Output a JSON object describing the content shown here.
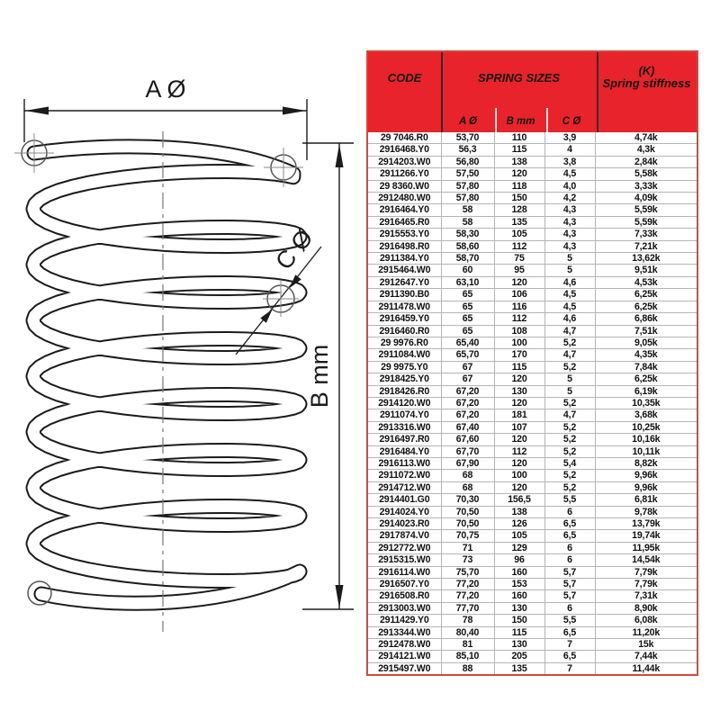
{
  "colors": {
    "header_red": "#e8232b",
    "table_border_red": "#d04a3c",
    "grid_gray": "#b5b5b5",
    "drawing_ink": "#1b1b1b"
  },
  "diagram": {
    "outer_diameter_label": "A Ø",
    "length_label": "B mm",
    "wire_diameter_label": "C Ø"
  },
  "table": {
    "header": {
      "code": "CODE",
      "sizes": "SPRING SIZES",
      "stiffness_line1": "(K)",
      "stiffness_line2": "Spring stiffness",
      "sub_a": "A Ø",
      "sub_b": "B mm",
      "sub_c": "C Ø"
    },
    "rows": [
      [
        "29 7046.R0",
        "53,70",
        "110",
        "3,9",
        "4,74k"
      ],
      [
        "2916468.Y0",
        "56,3",
        "115",
        "4",
        "4,3k"
      ],
      [
        "2914203.W0",
        "56,80",
        "138",
        "3,8",
        "2,84k"
      ],
      [
        "2911266.Y0",
        "57,50",
        "120",
        "4,5",
        "5,58k"
      ],
      [
        "29 8360.W0",
        "57,80",
        "118",
        "4,0",
        "3,33k"
      ],
      [
        "2912480.W0",
        "57,80",
        "150",
        "4,2",
        "4,09k"
      ],
      [
        "2916464.Y0",
        "58",
        "128",
        "4,3",
        "5,59k"
      ],
      [
        "2916465.R0",
        "58",
        "135",
        "4,3",
        "5,59k"
      ],
      [
        "2915553.Y0",
        "58,30",
        "105",
        "4,3",
        "7,33k"
      ],
      [
        "2916498.R0",
        "58,60",
        "112",
        "4,3",
        "7,21k"
      ],
      [
        "2911384.Y0",
        "58,70",
        "75",
        "5",
        "13,62k"
      ],
      [
        "2915464.W0",
        "60",
        "95",
        "5",
        "9,51k"
      ],
      [
        "2912647.Y0",
        "63,10",
        "120",
        "4,6",
        "4,53k"
      ],
      [
        "2911390.B0",
        "65",
        "106",
        "4,5",
        "6,25k"
      ],
      [
        "2911478.W0",
        "65",
        "116",
        "4,5",
        "6,25k"
      ],
      [
        "2916459.Y0",
        "65",
        "112",
        "4,6",
        "6,86k"
      ],
      [
        "2916460.R0",
        "65",
        "108",
        "4,7",
        "7,51k"
      ],
      [
        "29 9976.R0",
        "65,40",
        "100",
        "5,2",
        "9,05k"
      ],
      [
        "2911084.W0",
        "65,70",
        "170",
        "4,7",
        "4,35k"
      ],
      [
        "29 9975.Y0",
        "67",
        "115",
        "5,2",
        "7,84k"
      ],
      [
        "2918425.Y0",
        "67",
        "120",
        "5",
        "6,25k"
      ],
      [
        "2918426.R0",
        "67,20",
        "130",
        "5",
        "6,19k"
      ],
      [
        "2914120.W0",
        "67,20",
        "120",
        "5,2",
        "10,35k"
      ],
      [
        "2911074.Y0",
        "67,20",
        "181",
        "4,7",
        "3,68k"
      ],
      [
        "2913316.W0",
        "67,40",
        "107",
        "5,2",
        "10,25k"
      ],
      [
        "2916497.R0",
        "67,60",
        "120",
        "5,2",
        "10,16k"
      ],
      [
        "2916484.Y0",
        "67,70",
        "112",
        "5,2",
        "10,11k"
      ],
      [
        "2916113.W0",
        "67,90",
        "120",
        "5,4",
        "8,82k"
      ],
      [
        "2911072.W0",
        "68",
        "100",
        "5,2",
        "9,96k"
      ],
      [
        "2914712.W0",
        "68",
        "120",
        "5,2",
        "9,96k"
      ],
      [
        "2914401.G0",
        "70,30",
        "156,5",
        "5,5",
        "6,81k"
      ],
      [
        "2914024.Y0",
        "70,50",
        "138",
        "6",
        "9,78k"
      ],
      [
        "2914023.R0",
        "70,50",
        "126",
        "6,5",
        "13,79k"
      ],
      [
        "2917874.V0",
        "70,75",
        "105",
        "6,5",
        "19,74k"
      ],
      [
        "2912772.W0",
        "71",
        "129",
        "6",
        "11,95k"
      ],
      [
        "2915315.W0",
        "73",
        "96",
        "6",
        "14,54k"
      ],
      [
        "2916114.W0",
        "75,70",
        "160",
        "5,7",
        "7,79k"
      ],
      [
        "2916507.Y0",
        "77,20",
        "153",
        "5,7",
        "7,79k"
      ],
      [
        "2916508.R0",
        "77,20",
        "160",
        "5,7",
        "7,31k"
      ],
      [
        "2913003.W0",
        "77,70",
        "130",
        "6",
        "8,90k"
      ],
      [
        "2911429.Y0",
        "78",
        "150",
        "5,5",
        "6,08k"
      ],
      [
        "2913344.W0",
        "80,40",
        "115",
        "6,5",
        "11,20k"
      ],
      [
        "2912478.W0",
        "81",
        "130",
        "7",
        "15k"
      ],
      [
        "2914121.W0",
        "85,10",
        "205",
        "6,5",
        "7,44k"
      ],
      [
        "2915497.W0",
        "88",
        "135",
        "7",
        "11,44k"
      ]
    ]
  }
}
